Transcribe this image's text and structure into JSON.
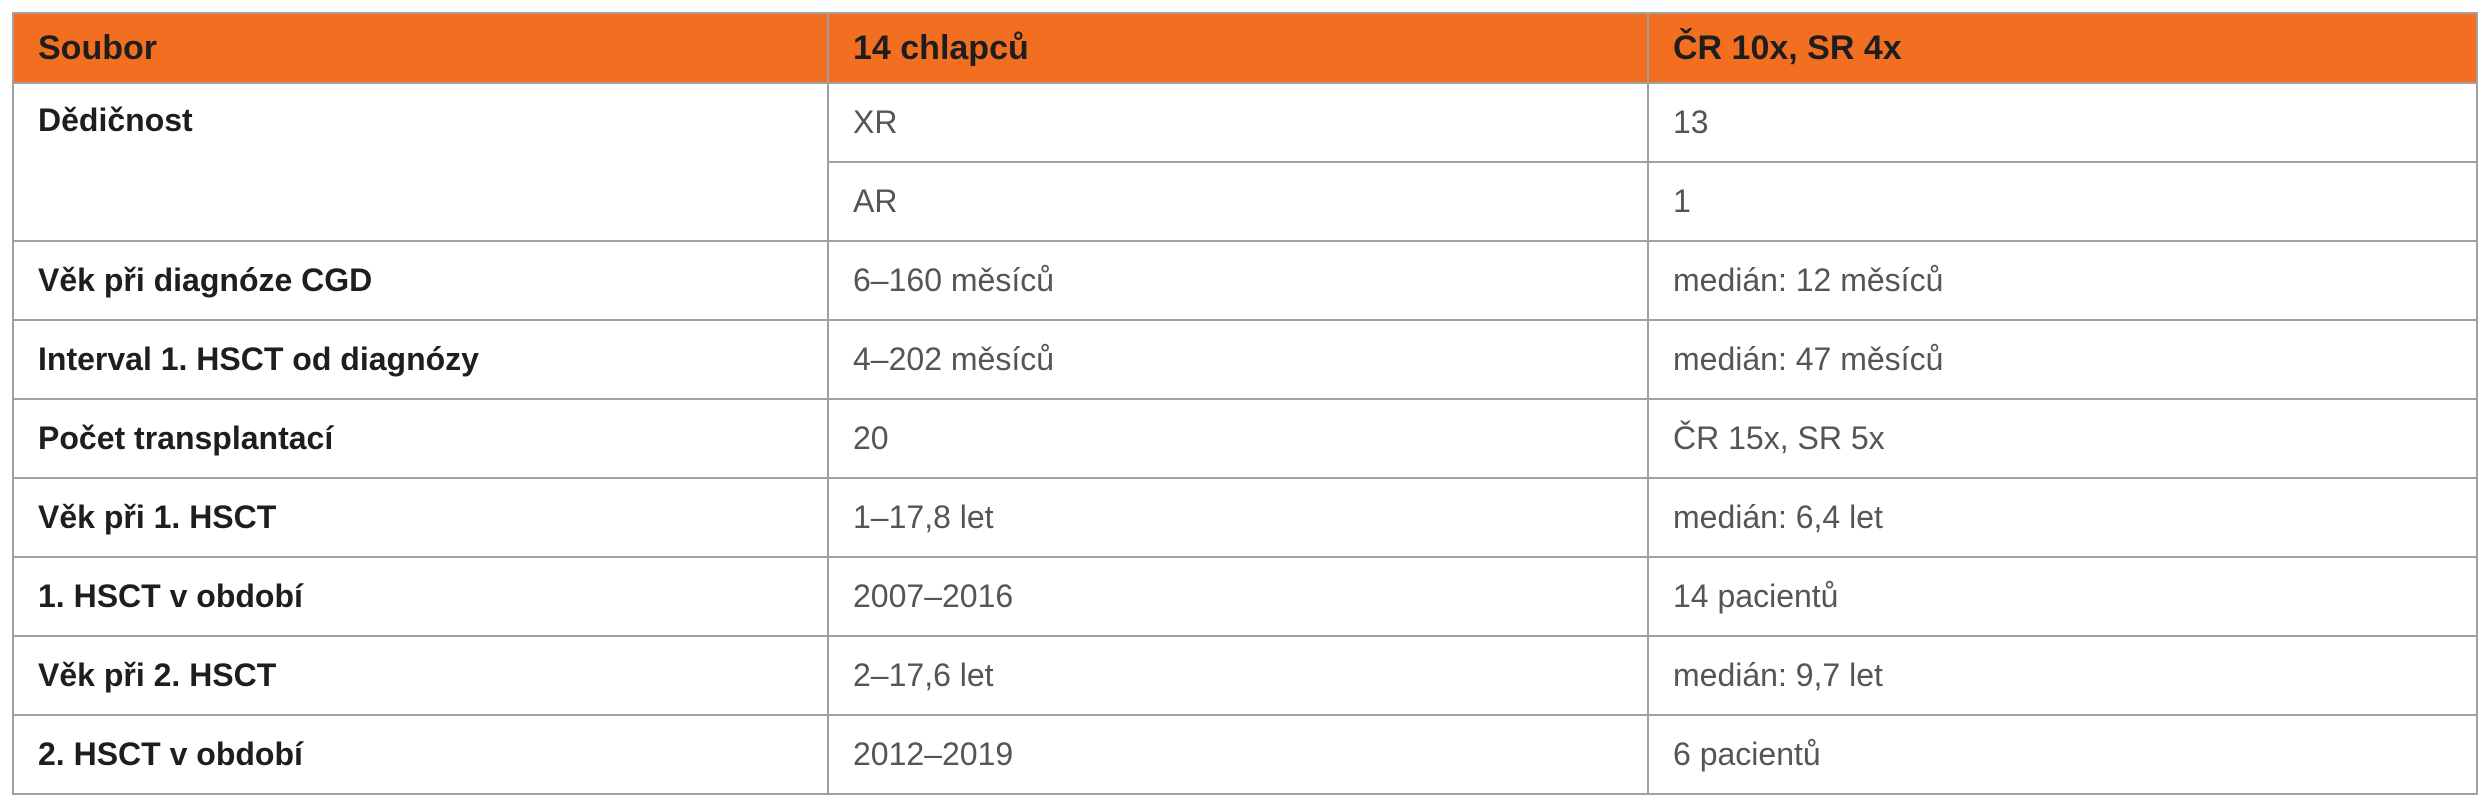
{
  "table": {
    "header": [
      "Soubor",
      "14 chlapců",
      "ČR 10x, SR 4x"
    ],
    "rows": [
      {
        "label": "Dědičnost",
        "values": [
          [
            "XR",
            "13"
          ],
          [
            "AR",
            "1"
          ]
        ]
      },
      {
        "label": "Věk při diagnóze CGD",
        "values": [
          [
            "6–160 měsíců",
            "medián: 12 měsíců"
          ]
        ]
      },
      {
        "label": "Interval 1. HSCT od diagnózy",
        "values": [
          [
            "4–202 měsíců",
            "medián: 47 měsíců"
          ]
        ]
      },
      {
        "label": "Počet transplantací",
        "values": [
          [
            "20",
            "ČR 15x, SR 5x"
          ]
        ]
      },
      {
        "label": "Věk při 1. HSCT",
        "values": [
          [
            "1–17,8 let",
            "medián: 6,4 let"
          ]
        ]
      },
      {
        "label": "1. HSCT v období",
        "values": [
          [
            "2007–2016",
            "14 pacientů"
          ]
        ]
      },
      {
        "label": "Věk při 2. HSCT",
        "values": [
          [
            "2–17,6 let",
            "medián: 9,7 let"
          ]
        ]
      },
      {
        "label": "2. HSCT v období",
        "values": [
          [
            "2012–2019",
            "6 pacientů"
          ]
        ]
      }
    ]
  }
}
